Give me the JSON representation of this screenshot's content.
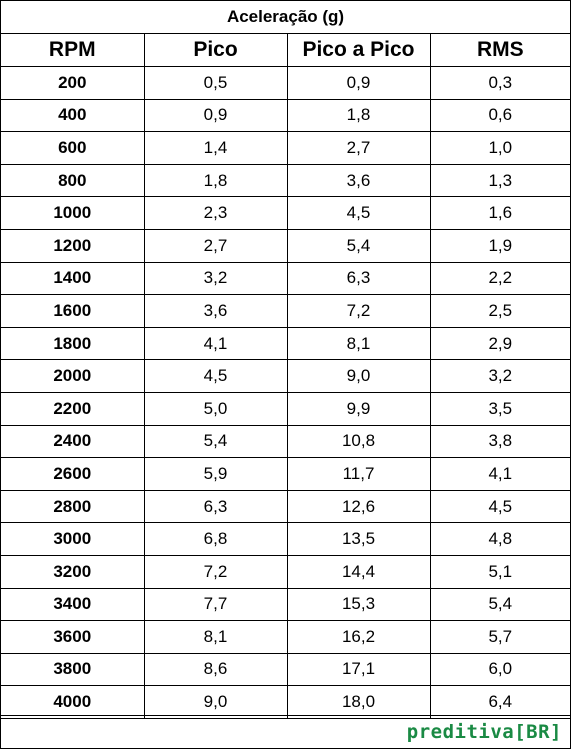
{
  "table": {
    "title": "Aceleração (g)",
    "headers": [
      "RPM",
      "Pico",
      "Pico a Pico",
      "RMS"
    ],
    "rows": [
      [
        "200",
        "0,5",
        "0,9",
        "0,3"
      ],
      [
        "400",
        "0,9",
        "1,8",
        "0,6"
      ],
      [
        "600",
        "1,4",
        "2,7",
        "1,0"
      ],
      [
        "800",
        "1,8",
        "3,6",
        "1,3"
      ],
      [
        "1000",
        "2,3",
        "4,5",
        "1,6"
      ],
      [
        "1200",
        "2,7",
        "5,4",
        "1,9"
      ],
      [
        "1400",
        "3,2",
        "6,3",
        "2,2"
      ],
      [
        "1600",
        "3,6",
        "7,2",
        "2,5"
      ],
      [
        "1800",
        "4,1",
        "8,1",
        "2,9"
      ],
      [
        "2000",
        "4,5",
        "9,0",
        "3,2"
      ],
      [
        "2200",
        "5,0",
        "9,9",
        "3,5"
      ],
      [
        "2400",
        "5,4",
        "10,8",
        "3,8"
      ],
      [
        "2600",
        "5,9",
        "11,7",
        "4,1"
      ],
      [
        "2800",
        "6,3",
        "12,6",
        "4,5"
      ],
      [
        "3000",
        "6,8",
        "13,5",
        "4,8"
      ],
      [
        "3200",
        "7,2",
        "14,4",
        "5,1"
      ],
      [
        "3400",
        "7,7",
        "15,3",
        "5,4"
      ],
      [
        "3600",
        "8,1",
        "16,2",
        "5,7"
      ],
      [
        "3800",
        "8,6",
        "17,1",
        "6,0"
      ],
      [
        "4000",
        "9,0",
        "18,0",
        "6,4"
      ]
    ]
  },
  "footer": {
    "brand_name": "preditiva",
    "brand_open": "[",
    "brand_code": "BR",
    "brand_close": "]"
  },
  "colors": {
    "brand": "#1a8a44",
    "border": "#000000"
  }
}
